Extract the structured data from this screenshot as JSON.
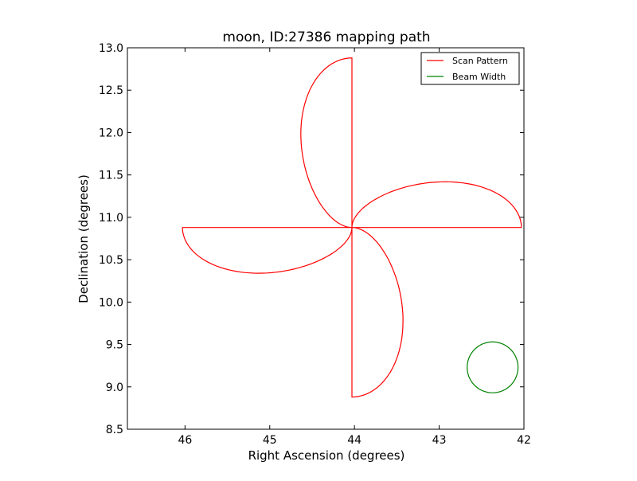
{
  "chart_data": {
    "type": "line",
    "title": "moon, ID:27386 mapping path",
    "xlabel": "Right Ascension (degrees)",
    "ylabel": "Declination (degrees)",
    "xlim": [
      46.68,
      42.0
    ],
    "ylim": [
      8.5,
      13.0
    ],
    "xticks": [
      {
        "value": 46,
        "label": "46"
      },
      {
        "value": 45,
        "label": "45"
      },
      {
        "value": 44,
        "label": "44"
      },
      {
        "value": 43,
        "label": "43"
      },
      {
        "value": 42,
        "label": "42"
      }
    ],
    "yticks": [
      {
        "value": 8.5,
        "label": "8.5"
      },
      {
        "value": 9.0,
        "label": "9.0"
      },
      {
        "value": 9.5,
        "label": "9.5"
      },
      {
        "value": 10.0,
        "label": "10.0"
      },
      {
        "value": 10.5,
        "label": "10.5"
      },
      {
        "value": 11.0,
        "label": "11.0"
      },
      {
        "value": 11.5,
        "label": "11.5"
      },
      {
        "value": 12.0,
        "label": "12.0"
      },
      {
        "value": 12.5,
        "label": "12.5"
      },
      {
        "value": 13.0,
        "label": "13.0"
      }
    ],
    "grid": false,
    "legend_position": "top-right",
    "series": [
      {
        "name": "Scan Pattern",
        "color": "#ff0000",
        "shape": "four-petal rose curve",
        "center": [
          44.03,
          10.88
        ],
        "petal_extent_ra": 2.0,
        "petal_extent_dec": 2.0,
        "petal_half_width_ra": 0.55,
        "petal_half_width_dec": 0.55
      },
      {
        "name": "Beam Width",
        "color": "#008000",
        "shape": "circle",
        "center": [
          42.37,
          9.23
        ],
        "radius_deg": 0.3
      }
    ]
  }
}
